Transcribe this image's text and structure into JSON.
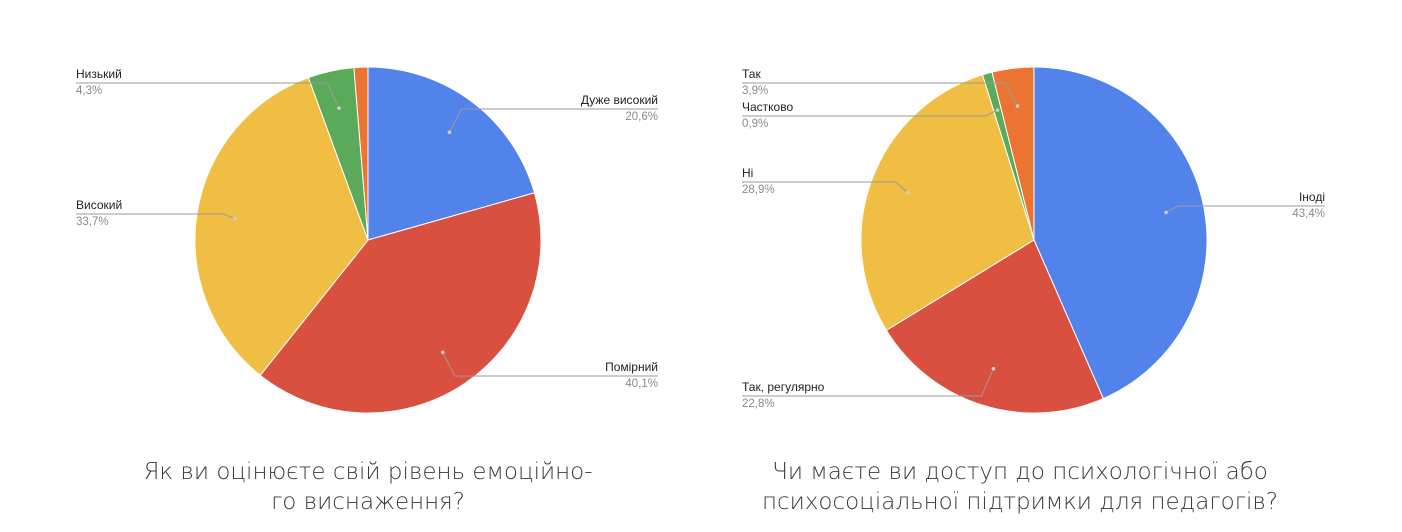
{
  "chart_data": [
    {
      "type": "pie",
      "title": "Як ви оцінюєте свій рівень емоційно-го виснаження?",
      "title_lines": [
        "Як ви оцінюєте свій рівень емоційно-",
        "го виснаження?"
      ],
      "start": "top, clockwise",
      "slices": [
        {
          "label": "Дуже високий",
          "value": 20.6,
          "pct_label": "20,6%",
          "color": "#5283EB",
          "label_side": "right"
        },
        {
          "label": "Помірний",
          "value": 40.1,
          "pct_label": "40,1%",
          "color": "#D95040",
          "label_side": "right"
        },
        {
          "label": "Високий",
          "value": 33.7,
          "pct_label": "33,7%",
          "color": "#F0BE42",
          "label_side": "left"
        },
        {
          "label": "Низький",
          "value": 4.3,
          "pct_label": "4,3%",
          "color": "#5AAA5A",
          "label_side": "left"
        },
        {
          "label": "",
          "value": 1.3,
          "pct_label": "",
          "color": "#EB7433",
          "label_side": "none"
        }
      ]
    },
    {
      "type": "pie",
      "title": "Чи маєте ви доступ до психологічної або психосоціальної підтримки для педагогів?",
      "title_lines": [
        "Чи маєте ви доступ до психологічної або",
        "психосоціальної підтримки для педагогів?"
      ],
      "start": "top, clockwise",
      "slices": [
        {
          "label": "Іноді",
          "value": 43.4,
          "pct_label": "43,4%",
          "color": "#5283EB",
          "label_side": "right"
        },
        {
          "label": "Так, регулярно",
          "value": 22.8,
          "pct_label": "22,8%",
          "color": "#D95040",
          "label_side": "left"
        },
        {
          "label": "Ні",
          "value": 28.9,
          "pct_label": "28,9%",
          "color": "#F0BE42",
          "label_side": "left"
        },
        {
          "label": "Частково",
          "value": 0.9,
          "pct_label": "0,9%",
          "color": "#5AAA5A",
          "label_side": "left"
        },
        {
          "label": "Так",
          "value": 3.9,
          "pct_label": "3,9%",
          "color": "#EB7433",
          "label_side": "left"
        }
      ]
    }
  ]
}
